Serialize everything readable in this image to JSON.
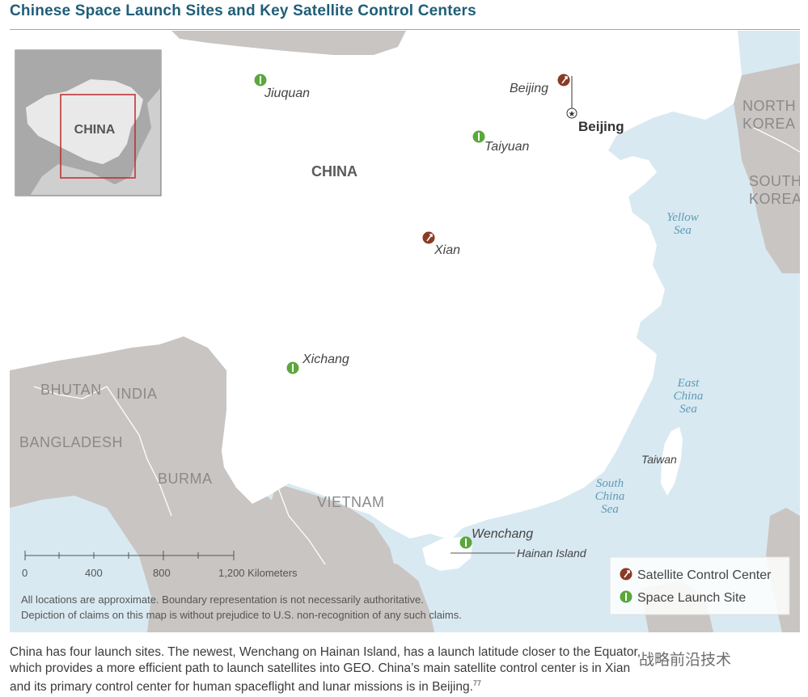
{
  "title": "Chinese Space Launch Sites and Key Satellite Control Centers",
  "colors": {
    "title": "#1f5e78",
    "sea": "#d8e9f2",
    "china": "#ffffff",
    "neighbors": "#c9c5c2",
    "launch_site": "#5aa83b",
    "control_center": "#8b3a24",
    "inset_frame": "#c0282d"
  },
  "inset": {
    "label": "CHINA"
  },
  "country_labels": {
    "china": "CHINA",
    "north_korea_1": "NORTH",
    "north_korea_2": "KOREA",
    "south_korea_1": "SOUTH",
    "south_korea_2": "KOREA",
    "bhutan": "BHUTAN",
    "india": "INDIA",
    "bangladesh": "BANGLADESH",
    "burma": "BURMA",
    "vietnam": "VIETNAM"
  },
  "sea_labels": {
    "yellow_1": "Yellow",
    "yellow_2": "Sea",
    "east_1": "East",
    "east_2": "China",
    "east_3": "Sea",
    "south_1": "South",
    "south_2": "China",
    "south_3": "Sea"
  },
  "places": {
    "jiuquan": "Jiuquan",
    "taiyuan": "Taiyuan",
    "xichang": "Xichang",
    "wenchang": "Wenchang",
    "beijing_control": "Beijing",
    "xian": "Xian",
    "beijing_capital": "Beijing",
    "taiwan": "Taiwan",
    "hainan": "Hainan Island"
  },
  "scale": {
    "ticks": [
      "0",
      "400",
      "800",
      "1,200 Kilometers"
    ]
  },
  "disclaimer": {
    "line1": "All locations are approximate. Boundary representation is not necessarily authoritative.",
    "line2": "Depiction of claims on this map is without prejudice to U.S. non-recognition of any such claims."
  },
  "legend": {
    "control_center": "Satellite Control Center",
    "launch_site": "Space Launch Site"
  },
  "caption": {
    "line1": "China has four launch sites. The newest, Wenchang on Hainan Island, has a launch latitude closer to the Equator,",
    "line2": "which provides a more efficient path to launch satellites into GEO. China’s main satellite control center is in Xian",
    "line3": "and its primary control center for human spaceflight and lunar missions is in Beijing.",
    "footnote": "77"
  },
  "watermark": "战略前沿技术"
}
